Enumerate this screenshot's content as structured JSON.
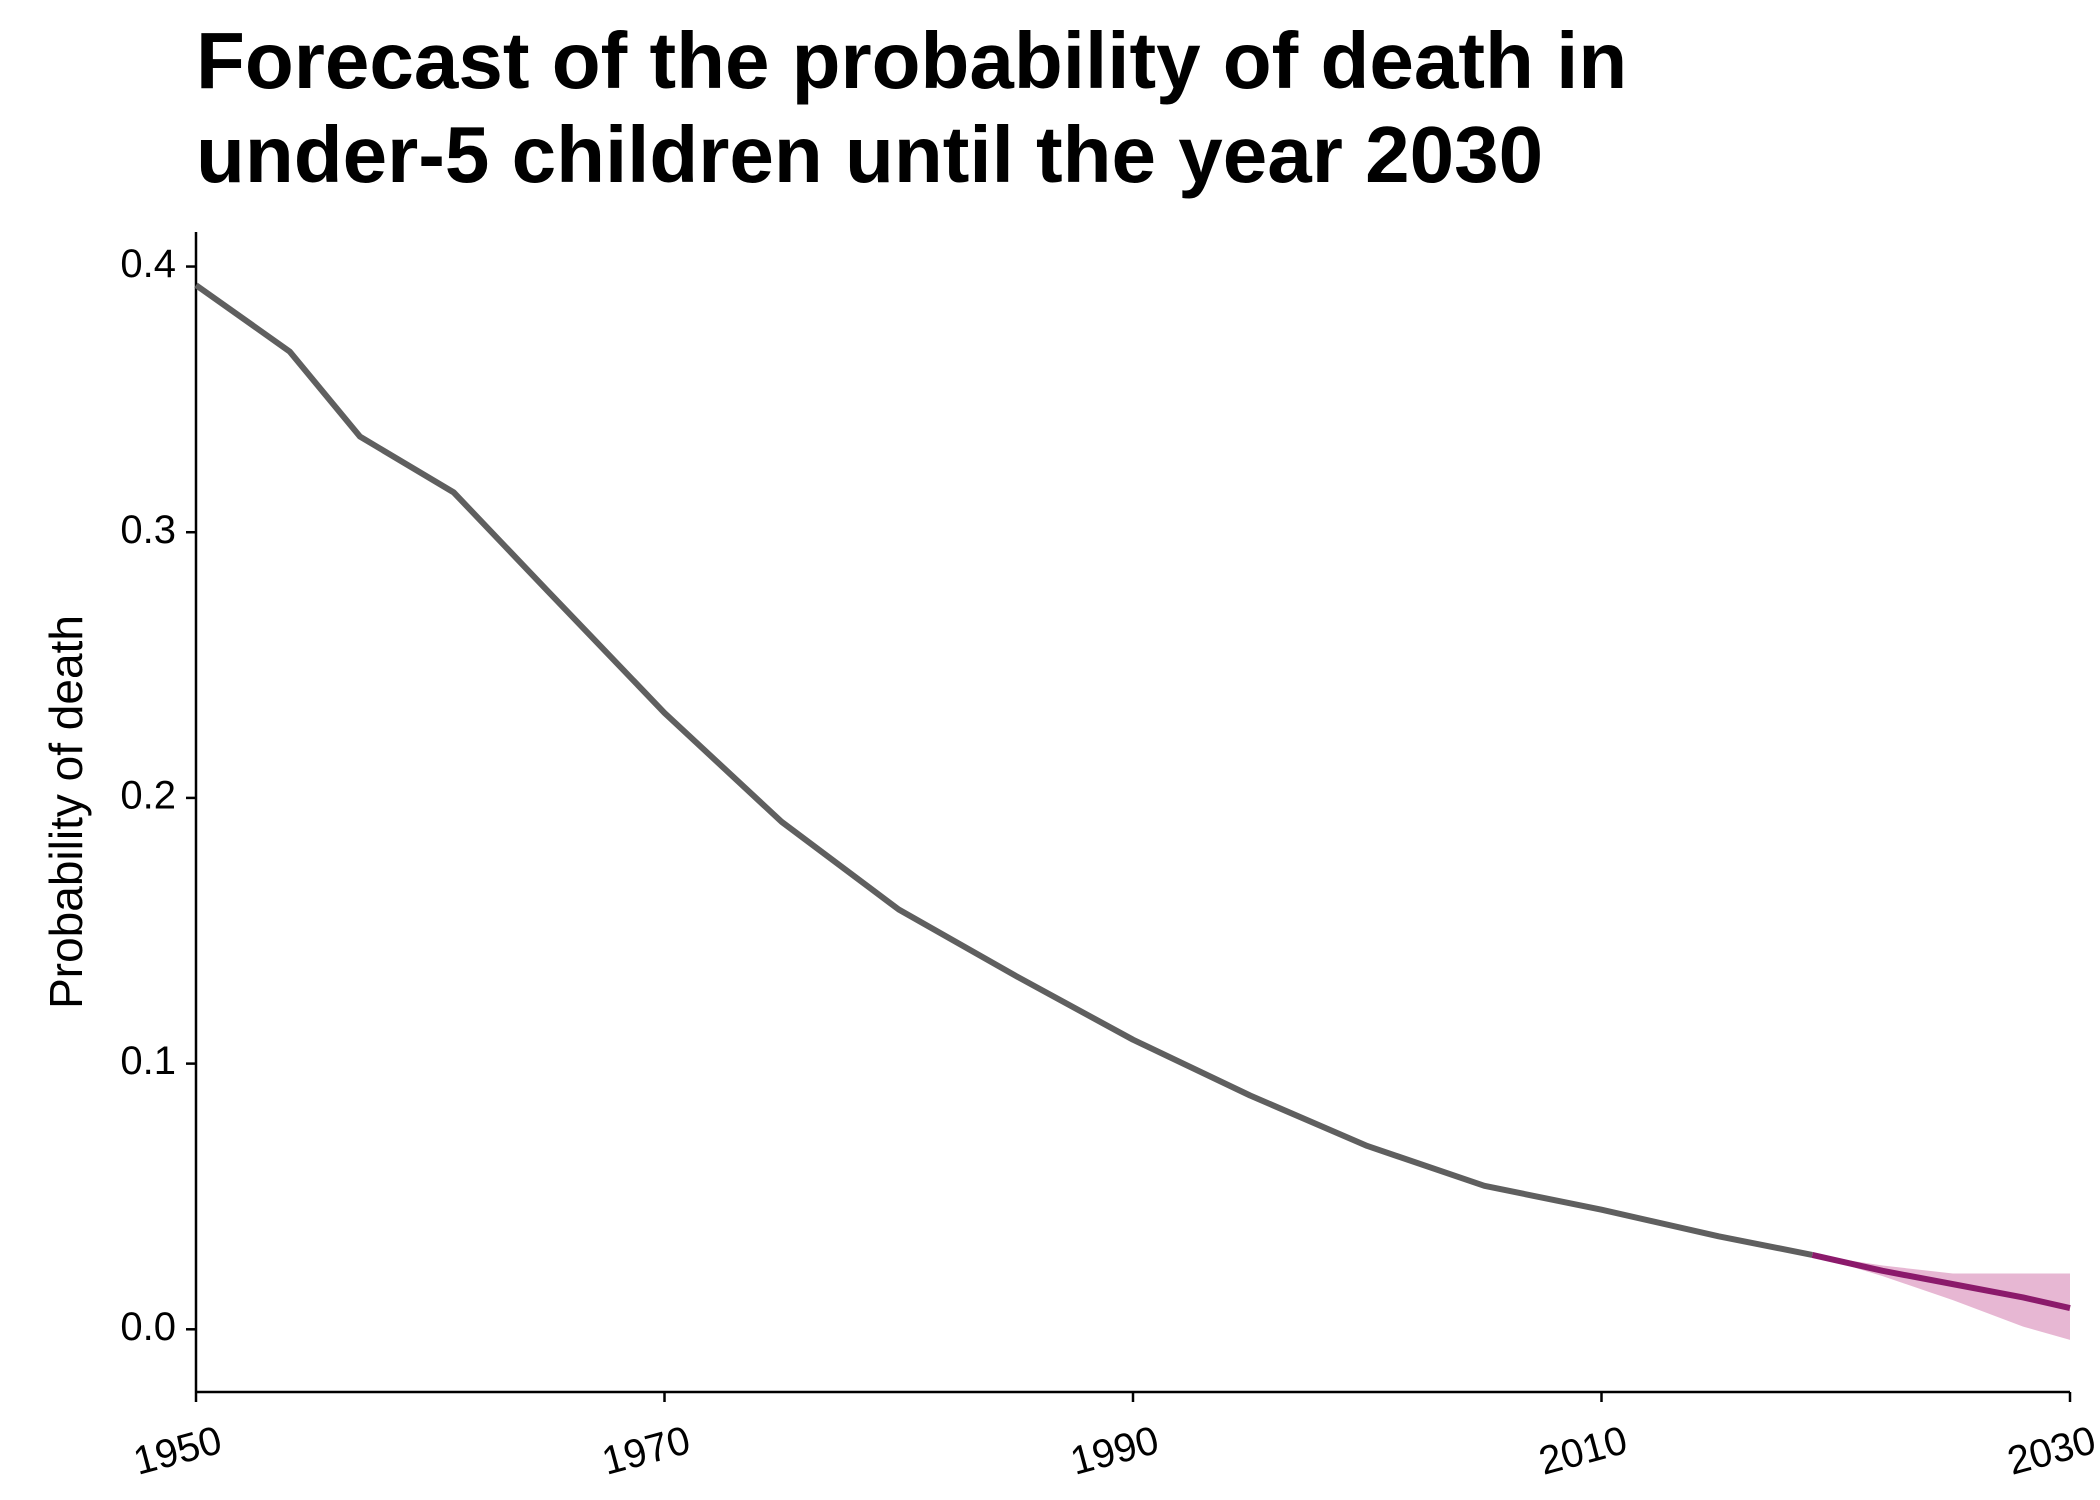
{
  "chart_data": {
    "type": "line",
    "title": [
      "Forecast of the probability of death in",
      "under-5 children until the year 2030"
    ],
    "y_label": "Probability of death",
    "xlim": [
      1950,
      2030
    ],
    "xticks": [
      1950,
      1970,
      1990,
      2010,
      2030
    ],
    "ylim": [
      -0.0236,
      0.413
    ],
    "yticks": [
      {
        "value": 0,
        "label": "0.0"
      },
      0.1,
      0.2,
      0.3,
      0.4
    ],
    "series": [
      {
        "color": "#5f5f5f",
        "x": [
          1950,
          1954,
          1957,
          1961,
          1965,
          1970,
          1975,
          1980,
          1985,
          1990,
          1995,
          2000,
          2005,
          2010,
          2015,
          2019
        ],
        "values": [
          0.393,
          0.368,
          0.336,
          0.315,
          0.278,
          0.232,
          0.191,
          0.158,
          0.133,
          0.109,
          0.088,
          0.069,
          0.054,
          0.045,
          0.035,
          0.028
        ]
      },
      {
        "color": "#8b1a6b",
        "band_color": "#e7b7d3",
        "x": [
          2019,
          2022,
          2025,
          2028,
          2030
        ],
        "values": [
          0.028,
          0.022,
          0.017,
          0.012,
          0.008
        ],
        "lower": [
          0.028,
          0.02,
          0.011,
          0.001,
          -0.004
        ],
        "upper": [
          0.028,
          0.024,
          0.021,
          0.021,
          0.021
        ]
      }
    ]
  }
}
